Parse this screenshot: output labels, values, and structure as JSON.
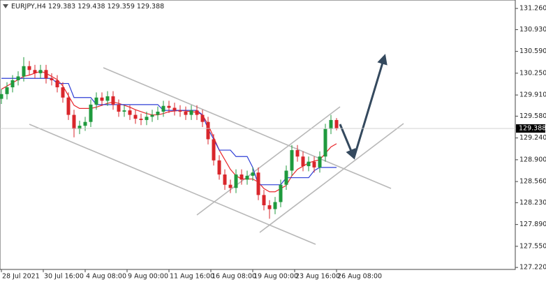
{
  "chart_data": {
    "type": "candlestick",
    "symbol": "EURJPY,H4",
    "header_values": [
      129.383,
      129.438,
      129.359,
      129.388
    ],
    "up_color": "#1f9a3e",
    "down_color": "#d9262b",
    "ylim": [
      127.2,
      131.37
    ],
    "yticks": [
      {
        "value": 127.22,
        "label": "127.220"
      },
      {
        "value": 127.55,
        "label": "127.550"
      },
      {
        "value": 127.89,
        "label": "127.890"
      },
      {
        "value": 128.23,
        "label": "128.230"
      },
      {
        "value": 128.56,
        "label": "128.560"
      },
      {
        "value": 128.9,
        "label": "128.900"
      },
      {
        "value": 129.24,
        "label": "129.240"
      },
      {
        "value": 129.58,
        "label": "129.580"
      },
      {
        "value": 129.91,
        "label": "129.910"
      },
      {
        "value": 130.25,
        "label": "130.250"
      },
      {
        "value": 130.59,
        "label": "130.590"
      },
      {
        "value": 130.93,
        "label": "130.930"
      },
      {
        "value": 131.26,
        "label": "131.260"
      }
    ],
    "xticks": [
      {
        "value": 0,
        "label": "28 Jul 2021"
      },
      {
        "value": 7.5,
        "label": "30 Jul 16:00"
      },
      {
        "value": 15,
        "label": "4 Aug 08:00"
      },
      {
        "value": 22.5,
        "label": "9 Aug 00:00"
      },
      {
        "value": 30,
        "label": "11 Aug 16:00"
      },
      {
        "value": 37.5,
        "label": "16 Aug 08:00"
      },
      {
        "value": 45,
        "label": "19 Aug 00:00"
      },
      {
        "value": 52.5,
        "label": "23 Aug 16:00"
      },
      {
        "value": 60,
        "label": "26 Aug 08:00"
      }
    ],
    "open": [
      129.85,
      129.924,
      130.03,
      130.14,
      130.2,
      130.36,
      130.3,
      130.25,
      130.3,
      130.17,
      130.14,
      130.03,
      129.87,
      129.6,
      129.38,
      129.43,
      129.49,
      129.76,
      129.87,
      129.82,
      129.89,
      129.76,
      129.65,
      129.67,
      129.6,
      129.54,
      129.52,
      129.57,
      129.6,
      129.65,
      129.74,
      129.71,
      129.67,
      129.65,
      129.6,
      129.67,
      129.6,
      129.49,
      129.22,
      128.89,
      128.67,
      128.51,
      128.46,
      128.67,
      128.59,
      128.65,
      128.7,
      128.35,
      128.19,
      128.13,
      128.24,
      128.51,
      128.73,
      129.05,
      128.95,
      128.8,
      128.87,
      128.78,
      128.95,
      129.38,
      129.52
    ],
    "high": [
      130.0,
      130.11,
      130.22,
      130.28,
      130.5,
      130.44,
      130.38,
      130.38,
      130.38,
      130.25,
      130.22,
      130.11,
      129.95,
      129.68,
      129.51,
      129.57,
      129.84,
      129.95,
      129.95,
      129.97,
      129.97,
      129.84,
      129.75,
      129.75,
      129.68,
      129.62,
      129.65,
      129.68,
      129.73,
      129.82,
      129.82,
      129.79,
      129.75,
      129.73,
      129.75,
      129.75,
      129.68,
      129.57,
      129.3,
      128.97,
      128.75,
      128.59,
      128.75,
      128.75,
      128.73,
      128.78,
      128.78,
      128.43,
      128.27,
      128.32,
      128.59,
      128.81,
      129.13,
      129.13,
      129.03,
      128.95,
      128.95,
      129.03,
      129.46,
      129.6,
      129.55
    ],
    "low": [
      129.77,
      129.84,
      129.95,
      130.06,
      130.12,
      130.22,
      130.17,
      130.17,
      130.09,
      130.06,
      129.95,
      129.79,
      129.52,
      129.25,
      129.3,
      129.35,
      129.41,
      129.68,
      129.74,
      129.74,
      129.68,
      129.57,
      129.57,
      129.52,
      129.46,
      129.44,
      129.44,
      129.49,
      129.52,
      129.57,
      129.63,
      129.59,
      129.57,
      129.52,
      129.52,
      129.52,
      129.41,
      129.14,
      128.81,
      128.59,
      128.43,
      128.38,
      128.38,
      128.51,
      128.51,
      128.57,
      128.27,
      128.11,
      127.98,
      128.05,
      128.16,
      128.43,
      128.65,
      128.87,
      128.72,
      128.72,
      128.7,
      128.7,
      128.87,
      129.3,
      129.359
    ],
    "close": [
      129.924,
      130.03,
      130.14,
      130.2,
      130.36,
      130.3,
      130.25,
      130.3,
      130.17,
      130.14,
      130.03,
      129.87,
      129.6,
      129.38,
      129.43,
      129.49,
      129.76,
      129.87,
      129.82,
      129.89,
      129.76,
      129.65,
      129.67,
      129.6,
      129.54,
      129.52,
      129.57,
      129.6,
      129.65,
      129.74,
      129.71,
      129.67,
      129.65,
      129.6,
      129.67,
      129.6,
      129.49,
      129.22,
      128.89,
      128.67,
      128.51,
      128.46,
      128.67,
      128.59,
      128.65,
      128.7,
      128.35,
      128.19,
      128.13,
      128.24,
      128.51,
      128.73,
      129.05,
      128.95,
      128.8,
      128.87,
      128.78,
      128.95,
      129.38,
      129.52,
      129.388
    ],
    "series": [
      {
        "color": "#e8262b",
        "values": [
          130.0,
          130.05,
          130.1,
          130.15,
          130.2,
          130.22,
          130.25,
          130.28,
          130.25,
          130.2,
          130.15,
          130.05,
          129.9,
          129.75,
          129.7,
          129.7,
          129.7,
          129.72,
          129.75,
          129.78,
          129.8,
          129.78,
          129.75,
          129.72,
          129.68,
          129.65,
          129.62,
          129.6,
          129.6,
          129.62,
          129.65,
          129.66,
          129.67,
          129.66,
          129.65,
          129.64,
          129.6,
          129.45,
          129.25,
          129.05,
          128.9,
          128.75,
          128.65,
          128.6,
          128.6,
          128.6,
          128.55,
          128.45,
          128.4,
          128.4,
          128.45,
          128.5,
          128.65,
          128.75,
          128.8,
          128.85,
          128.88,
          128.9,
          129.0,
          129.1,
          129.15
        ]
      },
      {
        "color": "#2f3fd6",
        "values": [
          130.17,
          130.17,
          130.17,
          130.17,
          130.17,
          130.17,
          130.17,
          130.17,
          130.17,
          130.17,
          130.09,
          130.09,
          130.09,
          129.87,
          129.87,
          129.87,
          129.87,
          129.76,
          129.76,
          129.76,
          129.76,
          129.76,
          129.76,
          129.76,
          129.76,
          129.76,
          129.76,
          129.76,
          129.76,
          129.67,
          129.67,
          129.67,
          129.67,
          129.67,
          129.67,
          129.67,
          129.6,
          129.38,
          129.22,
          129.05,
          129.05,
          129.05,
          128.95,
          128.95,
          128.95,
          128.78,
          128.51,
          128.51,
          128.51,
          128.51,
          128.51,
          128.62,
          128.62,
          128.62,
          128.62,
          128.62,
          128.73,
          128.78,
          128.78,
          128.78,
          128.78
        ]
      }
    ]
  }
}
